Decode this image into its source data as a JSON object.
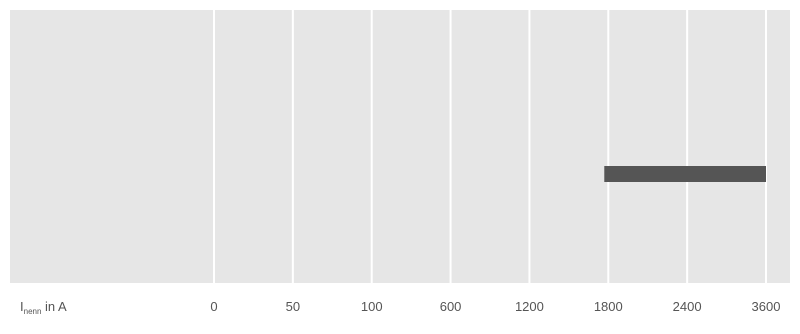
{
  "chart_data": {
    "type": "bar",
    "orientation": "horizontal",
    "x_axis_kind": "categorical",
    "categories": [
      "0",
      "50",
      "100",
      "600",
      "1200",
      "1800",
      "2400",
      "3600"
    ],
    "xlabel": {
      "symbol": "I",
      "subscript": "nenn",
      "suffix": " in A"
    },
    "ranges": [
      {
        "from": "1800",
        "to": "3600"
      }
    ],
    "grid": true,
    "legend": "none",
    "colors": {
      "plot_background": "#e6e6e6",
      "gridline": "#ffffff",
      "bar": "#555555",
      "text": "#555555"
    }
  }
}
